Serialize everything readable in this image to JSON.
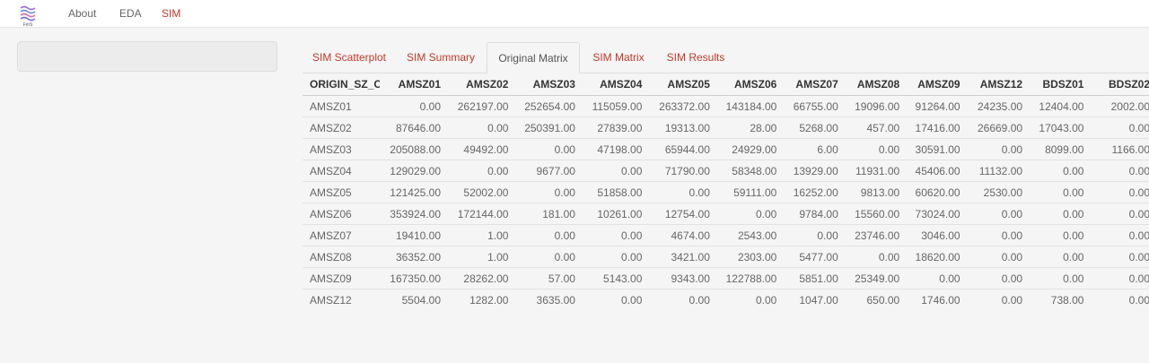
{
  "nav": {
    "items": [
      {
        "label": "About"
      },
      {
        "label": "EDA"
      },
      {
        "label": "SIM"
      }
    ],
    "logo_text": "FmS"
  },
  "tabs": [
    {
      "label": "SIM Scatterplot"
    },
    {
      "label": "SIM Summary"
    },
    {
      "label": "Original Matrix"
    },
    {
      "label": "SIM Matrix"
    },
    {
      "label": "SIM Results"
    }
  ],
  "colors": {
    "accent": "#c0392b",
    "page_bg": "#f5f5f5"
  },
  "table": {
    "columns": [
      "ORIGIN_SZ_C",
      "AMSZ01",
      "AMSZ02",
      "AMSZ03",
      "AMSZ04",
      "AMSZ05",
      "AMSZ06",
      "AMSZ07",
      "AMSZ08",
      "AMSZ09",
      "AMSZ12",
      "BDSZ01",
      "BDSZ02"
    ],
    "rows": [
      [
        "AMSZ01",
        "0.00",
        "262197.00",
        "252654.00",
        "115059.00",
        "263372.00",
        "143184.00",
        "66755.00",
        "19096.00",
        "91264.00",
        "24235.00",
        "12404.00",
        "2002.00"
      ],
      [
        "AMSZ02",
        "87646.00",
        "0.00",
        "250391.00",
        "27839.00",
        "19313.00",
        "28.00",
        "5268.00",
        "457.00",
        "17416.00",
        "26669.00",
        "17043.00",
        "0.00"
      ],
      [
        "AMSZ03",
        "205088.00",
        "49492.00",
        "0.00",
        "47198.00",
        "65944.00",
        "24929.00",
        "6.00",
        "0.00",
        "30591.00",
        "0.00",
        "8099.00",
        "1166.00"
      ],
      [
        "AMSZ04",
        "129029.00",
        "0.00",
        "9677.00",
        "0.00",
        "71790.00",
        "58348.00",
        "13929.00",
        "11931.00",
        "45406.00",
        "11132.00",
        "0.00",
        "0.00"
      ],
      [
        "AMSZ05",
        "121425.00",
        "52002.00",
        "0.00",
        "51858.00",
        "0.00",
        "59111.00",
        "16252.00",
        "9813.00",
        "60620.00",
        "2530.00",
        "0.00",
        "0.00"
      ],
      [
        "AMSZ06",
        "353924.00",
        "172144.00",
        "181.00",
        "10261.00",
        "12754.00",
        "0.00",
        "9784.00",
        "15560.00",
        "73024.00",
        "0.00",
        "0.00",
        "0.00"
      ],
      [
        "AMSZ07",
        "19410.00",
        "1.00",
        "0.00",
        "0.00",
        "4674.00",
        "2543.00",
        "0.00",
        "23746.00",
        "3046.00",
        "0.00",
        "0.00",
        "0.00"
      ],
      [
        "AMSZ08",
        "36352.00",
        "1.00",
        "0.00",
        "0.00",
        "3421.00",
        "2303.00",
        "5477.00",
        "0.00",
        "18620.00",
        "0.00",
        "0.00",
        "0.00"
      ],
      [
        "AMSZ09",
        "167350.00",
        "28262.00",
        "57.00",
        "5143.00",
        "9343.00",
        "122788.00",
        "5851.00",
        "25349.00",
        "0.00",
        "0.00",
        "0.00",
        "0.00"
      ],
      [
        "AMSZ12",
        "5504.00",
        "1282.00",
        "3635.00",
        "0.00",
        "0.00",
        "0.00",
        "1047.00",
        "650.00",
        "1746.00",
        "0.00",
        "738.00",
        "0.00"
      ]
    ]
  }
}
